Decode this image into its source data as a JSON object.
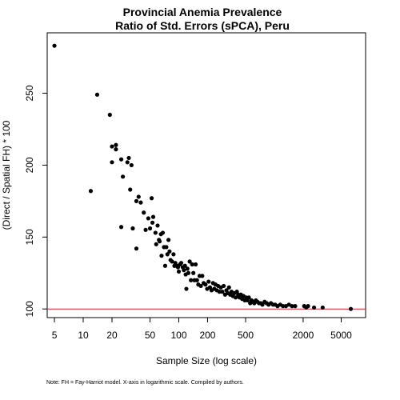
{
  "chart_data": {
    "type": "scatter",
    "title": [
      "Provincial Anemia Prevalence",
      "Ratio of Std. Errors (sPCA), Peru"
    ],
    "xlabel": "Sample Size (log scale)",
    "ylabel": "(Direct / Spatial FH) * 100",
    "x_scale": "log",
    "xlim": [
      4.2,
      9000
    ],
    "ylim": [
      94,
      292
    ],
    "x_ticks": [
      5,
      10,
      20,
      50,
      100,
      200,
      500,
      2000,
      5000
    ],
    "x_tick_labels": [
      "5",
      "10",
      "20",
      "50",
      "100",
      "200",
      "500",
      "2000",
      "5000"
    ],
    "y_ticks": [
      100,
      150,
      200,
      250
    ],
    "y_tick_labels": [
      "100",
      "150",
      "200",
      "250"
    ],
    "reference_line": {
      "y": 100,
      "color": "#e31a1c"
    },
    "grid": false,
    "legend": "none",
    "point_color": "#000000",
    "points": [
      [
        5,
        283
      ],
      [
        12,
        182
      ],
      [
        14,
        249
      ],
      [
        19,
        235
      ],
      [
        20,
        213
      ],
      [
        20,
        202
      ],
      [
        22,
        214
      ],
      [
        22,
        211
      ],
      [
        25,
        157
      ],
      [
        25,
        204
      ],
      [
        26,
        192
      ],
      [
        29,
        202
      ],
      [
        30,
        205
      ],
      [
        31,
        183
      ],
      [
        32,
        200
      ],
      [
        33,
        156
      ],
      [
        36,
        142
      ],
      [
        36,
        175
      ],
      [
        38,
        178
      ],
      [
        40,
        174
      ],
      [
        43,
        167
      ],
      [
        45,
        155
      ],
      [
        48,
        163
      ],
      [
        50,
        156
      ],
      [
        52,
        177
      ],
      [
        53,
        160
      ],
      [
        54,
        164
      ],
      [
        57,
        153
      ],
      [
        58,
        145
      ],
      [
        60,
        158
      ],
      [
        62,
        148
      ],
      [
        63,
        147
      ],
      [
        65,
        152
      ],
      [
        66,
        137
      ],
      [
        68,
        153
      ],
      [
        70,
        143
      ],
      [
        72,
        130
      ],
      [
        74,
        143
      ],
      [
        76,
        138
      ],
      [
        78,
        148
      ],
      [
        80,
        140
      ],
      [
        82,
        134
      ],
      [
        85,
        133
      ],
      [
        88,
        138
      ],
      [
        90,
        130
      ],
      [
        92,
        132
      ],
      [
        95,
        130
      ],
      [
        98,
        129
      ],
      [
        100,
        126
      ],
      [
        103,
        131
      ],
      [
        106,
        132
      ],
      [
        110,
        129
      ],
      [
        113,
        127
      ],
      [
        116,
        130
      ],
      [
        118,
        124
      ],
      [
        120,
        114
      ],
      [
        123,
        128
      ],
      [
        126,
        125
      ],
      [
        130,
        133
      ],
      [
        134,
        120
      ],
      [
        138,
        131
      ],
      [
        142,
        125
      ],
      [
        146,
        120
      ],
      [
        150,
        131
      ],
      [
        155,
        120
      ],
      [
        160,
        117
      ],
      [
        165,
        123
      ],
      [
        170,
        116
      ],
      [
        176,
        123
      ],
      [
        182,
        118
      ],
      [
        190,
        117
      ],
      [
        198,
        114
      ],
      [
        205,
        119
      ],
      [
        212,
        115
      ],
      [
        220,
        113
      ],
      [
        228,
        118
      ],
      [
        235,
        114
      ],
      [
        242,
        117
      ],
      [
        250,
        113
      ],
      [
        258,
        116
      ],
      [
        266,
        112
      ],
      [
        275,
        115
      ],
      [
        285,
        112
      ],
      [
        295,
        116
      ],
      [
        305,
        110
      ],
      [
        315,
        113
      ],
      [
        325,
        111
      ],
      [
        335,
        115
      ],
      [
        345,
        110
      ],
      [
        356,
        112
      ],
      [
        368,
        109
      ],
      [
        380,
        111
      ],
      [
        393,
        108
      ],
      [
        405,
        112
      ],
      [
        418,
        110
      ],
      [
        432,
        108
      ],
      [
        446,
        110
      ],
      [
        460,
        107
      ],
      [
        475,
        109
      ],
      [
        490,
        106
      ],
      [
        506,
        108
      ],
      [
        522,
        106
      ],
      [
        540,
        108
      ],
      [
        558,
        104
      ],
      [
        577,
        106
      ],
      [
        596,
        105
      ],
      [
        616,
        104
      ],
      [
        640,
        106
      ],
      [
        665,
        105
      ],
      [
        690,
        104
      ],
      [
        720,
        104
      ],
      [
        750,
        103
      ],
      [
        790,
        105
      ],
      [
        830,
        104
      ],
      [
        870,
        103
      ],
      [
        920,
        104
      ],
      [
        970,
        103
      ],
      [
        1020,
        103
      ],
      [
        1080,
        102
      ],
      [
        1150,
        103
      ],
      [
        1230,
        102
      ],
      [
        1320,
        102
      ],
      [
        1420,
        103
      ],
      [
        1530,
        102
      ],
      [
        1650,
        102
      ],
      [
        2050,
        102
      ],
      [
        2150,
        101
      ],
      [
        2250,
        102
      ],
      [
        2600,
        101
      ],
      [
        3200,
        101
      ],
      [
        6300,
        100
      ]
    ]
  },
  "note": "Note: FH = Fay-Harriot model. X-axis in logarithmic scale. Compiled by authors."
}
